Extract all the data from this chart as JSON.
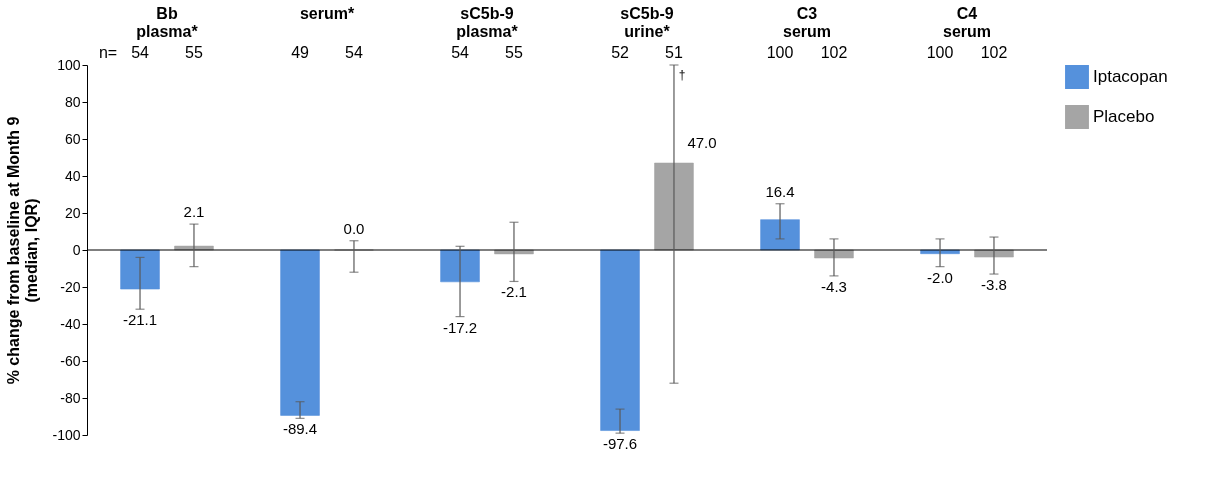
{
  "chart_data": {
    "type": "bar",
    "categories": [
      "Bb\nplasma*",
      "serum*",
      "sC5b-9\nplasma*",
      "sC5b-9\nurine*",
      "C3\nserum",
      "C4\nserum"
    ],
    "ylabel": "% change from baseline at Month 9\n(median, IQR)",
    "series": [
      {
        "name": "Iptacopan",
        "color": "#5591dc",
        "values": [
          -21.1,
          -89.4,
          -17.2,
          -97.6,
          16.4,
          -2.0
        ],
        "value_labels": [
          "-21.1",
          "-89.4",
          "-17.2",
          "-97.6",
          "16.4",
          "-2.0"
        ],
        "errors": [
          [
            -32,
            -4
          ],
          [
            -91,
            -82
          ],
          [
            -36,
            2
          ],
          [
            -99,
            -86
          ],
          [
            6,
            25
          ],
          [
            -9,
            6
          ]
        ]
      },
      {
        "name": "Placebo",
        "color": "#a5a5a5",
        "values": [
          2.1,
          0.0,
          -2.1,
          47.0,
          -4.3,
          -3.8
        ],
        "value_labels": [
          "2.1",
          "0.0",
          "-2.1",
          "47.0",
          "-4.3",
          "-3.8"
        ],
        "errors": [
          [
            -9,
            14
          ],
          [
            -12,
            5
          ],
          [
            -17,
            15
          ],
          [
            -72,
            100
          ],
          [
            -14,
            6
          ],
          [
            -13,
            7
          ]
        ]
      }
    ],
    "ylim": [
      -100,
      100
    ],
    "yticks": [
      -100,
      -80,
      -60,
      -40,
      -20,
      0,
      20,
      40,
      60,
      80,
      100
    ],
    "grid": false,
    "legend": "right",
    "annotations": [
      "n=",
      "54",
      "55",
      "49",
      "54",
      "54",
      "55",
      "52",
      "51",
      "100",
      "102",
      "100",
      "102",
      "†"
    ],
    "ref_lines": [
      {
        "axis": "y",
        "value": 0
      }
    ]
  }
}
